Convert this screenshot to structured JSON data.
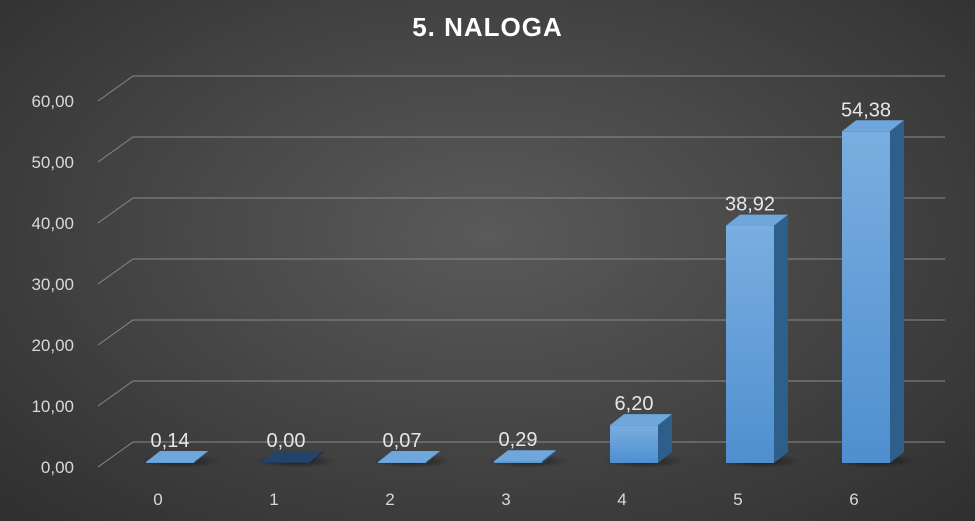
{
  "chart_data": {
    "type": "bar",
    "title": "5. NALOGA",
    "categories": [
      "0",
      "1",
      "2",
      "3",
      "4",
      "5",
      "6"
    ],
    "values": [
      0.14,
      0.0,
      0.07,
      0.29,
      6.2,
      38.92,
      54.38
    ],
    "data_labels": [
      "0,14",
      "0,00",
      "0,07",
      "0,29",
      "6,20",
      "38,92",
      "54,38"
    ],
    "y_tick_labels": [
      "0,00",
      "10,00",
      "20,00",
      "30,00",
      "40,00",
      "50,00",
      "60,00"
    ],
    "ylim": [
      0,
      60
    ],
    "xlabel": "",
    "ylabel": "",
    "grid": true,
    "legend": "none",
    "colors": {
      "bar": "#5b9bd5",
      "bar_dark": "#2e5f8a",
      "bar_zero": "#1f3a5a",
      "grid": "#8a8a8a"
    }
  }
}
